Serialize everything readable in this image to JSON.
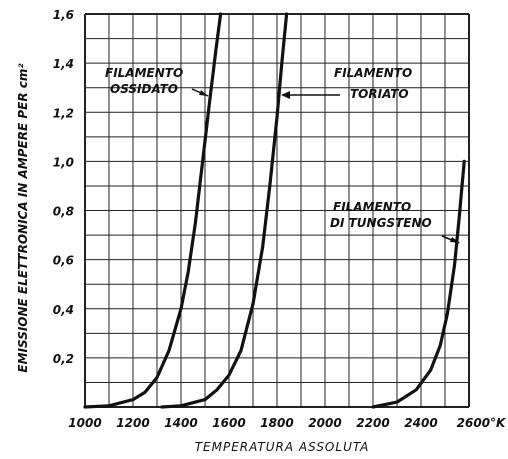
{
  "chart_data": {
    "type": "line",
    "xlabel": "TEMPERATURA ASSOLUTA",
    "ylabel": "EMISSIONE ELETTRONICA IN AMPERE PER cm²",
    "xlim": [
      1000,
      2600
    ],
    "ylim": [
      0,
      1.6
    ],
    "x_ticks": [
      "1000",
      "1200",
      "1400",
      "1600",
      "1800",
      "2000",
      "2200",
      "2400",
      "2600°K"
    ],
    "y_ticks": [
      "0,2",
      "0,4",
      "0,6",
      "0,8",
      "1,0",
      "1,2",
      "1,4",
      "1,6"
    ],
    "grid": true,
    "series": [
      {
        "name": "FILAMENTO OSSIDATO",
        "x": [
          1000,
          1100,
          1200,
          1250,
          1300,
          1350,
          1400,
          1430,
          1460,
          1490,
          1520,
          1545,
          1565
        ],
        "y": [
          0,
          0.005,
          0.03,
          0.06,
          0.12,
          0.23,
          0.4,
          0.55,
          0.75,
          1.0,
          1.25,
          1.45,
          1.6
        ]
      },
      {
        "name": "FILAMENTO TORIATO",
        "x": [
          1320,
          1400,
          1500,
          1550,
          1600,
          1650,
          1700,
          1740,
          1770,
          1800,
          1820,
          1840
        ],
        "y": [
          0,
          0.005,
          0.03,
          0.07,
          0.13,
          0.23,
          0.42,
          0.65,
          0.9,
          1.18,
          1.4,
          1.6
        ]
      },
      {
        "name": "FILAMENTO DI TUNGSTENO",
        "x": [
          2200,
          2300,
          2380,
          2440,
          2480,
          2510,
          2540,
          2560,
          2580
        ],
        "y": [
          0,
          0.02,
          0.07,
          0.15,
          0.25,
          0.38,
          0.58,
          0.78,
          1.0
        ]
      }
    ],
    "annotations": [
      {
        "lines": [
          "FILAMENTO",
          "OSSIDATO"
        ]
      },
      {
        "lines": [
          "FILAMENTO",
          "TORIATO"
        ]
      },
      {
        "lines": [
          "FILAMENTO",
          "DI TUNGSTENO"
        ]
      }
    ]
  }
}
